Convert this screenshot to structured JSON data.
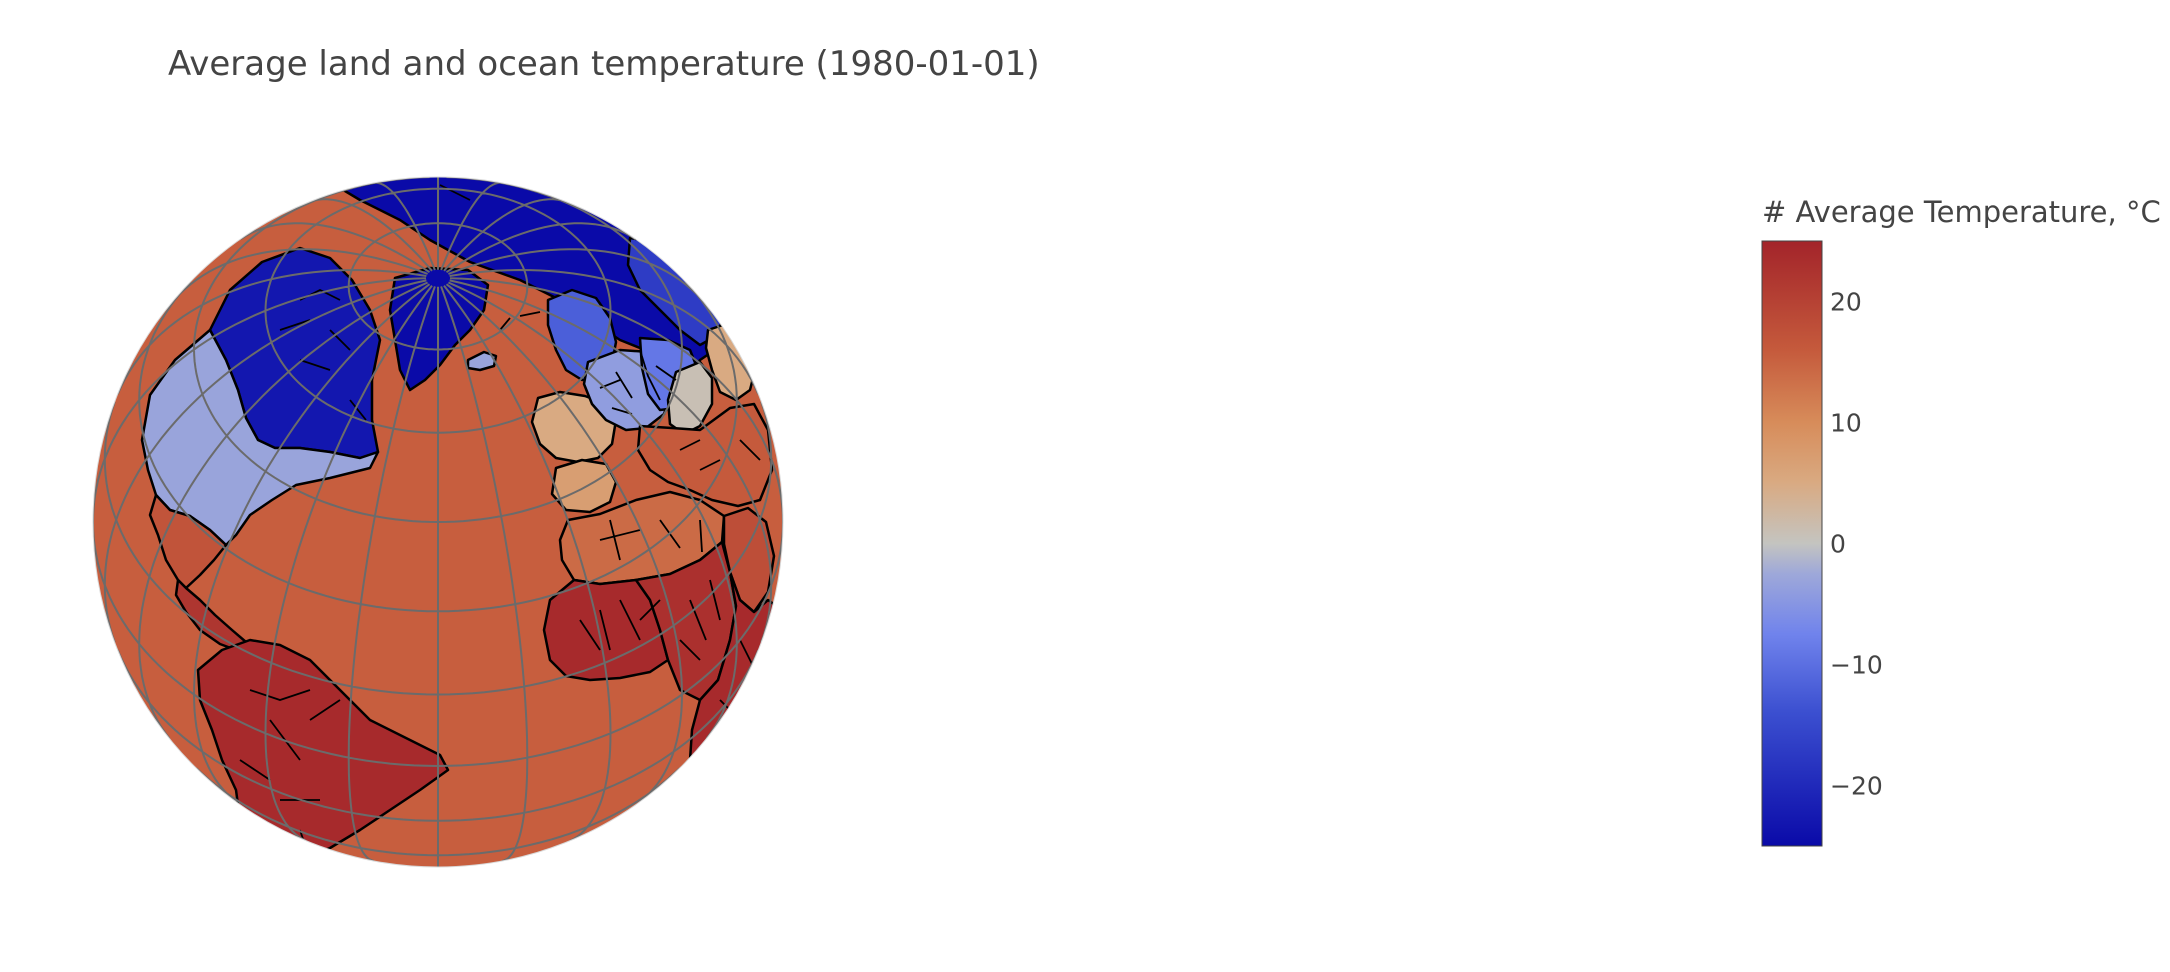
{
  "title": "Average land and ocean temperature (1980-01-01)",
  "colorbar": {
    "title": "# Average Temperature, °C",
    "range": [
      -25,
      25
    ],
    "ticks": [
      {
        "value": 20,
        "label": "20"
      },
      {
        "value": 10,
        "label": "10"
      },
      {
        "value": 0,
        "label": "0"
      },
      {
        "value": -10,
        "label": "−10"
      },
      {
        "value": -20,
        "label": "−20"
      }
    ],
    "colorscale": [
      [
        0.0,
        "#0a0aa8"
      ],
      [
        0.22,
        "#3b4fd0"
      ],
      [
        0.35,
        "#7083ec"
      ],
      [
        0.45,
        "#9ea8d9"
      ],
      [
        0.5,
        "#c4c4c0"
      ],
      [
        0.6,
        "#d9aa82"
      ],
      [
        0.7,
        "#d78c5a"
      ],
      [
        0.82,
        "#c55a3c"
      ],
      [
        1.0,
        "#a3242a"
      ]
    ]
  },
  "map_data": {
    "projection": "orthographic",
    "ocean_value": 15.5,
    "regions": [
      {
        "name": "Arctic North America",
        "value": -23
      },
      {
        "name": "Greenland",
        "value": -25
      },
      {
        "name": "Northern Eurasia",
        "value": -25
      },
      {
        "name": "Scandinavia",
        "value": -12
      },
      {
        "name": "Western Russia",
        "value": -17
      },
      {
        "name": "Contiguous United States",
        "value": -3
      },
      {
        "name": "Central Europe",
        "value": -4
      },
      {
        "name": "Eastern Europe",
        "value": -9
      },
      {
        "name": "Balkans",
        "value": 1
      },
      {
        "name": "Western Europe",
        "value": 5
      },
      {
        "name": "Iberia",
        "value": 7
      },
      {
        "name": "Iceland",
        "value": -3
      },
      {
        "name": "North Africa",
        "value": 14
      },
      {
        "name": "Middle East",
        "value": 16
      },
      {
        "name": "Caucasus",
        "value": 5
      },
      {
        "name": "Mexico",
        "value": 17
      },
      {
        "name": "Central America",
        "value": 22
      },
      {
        "name": "South America",
        "value": 24
      },
      {
        "name": "West Africa",
        "value": 24
      },
      {
        "name": "Central Africa",
        "value": 23
      },
      {
        "name": "East Africa",
        "value": 24
      },
      {
        "name": "Arabian Peninsula",
        "value": 18
      }
    ]
  }
}
